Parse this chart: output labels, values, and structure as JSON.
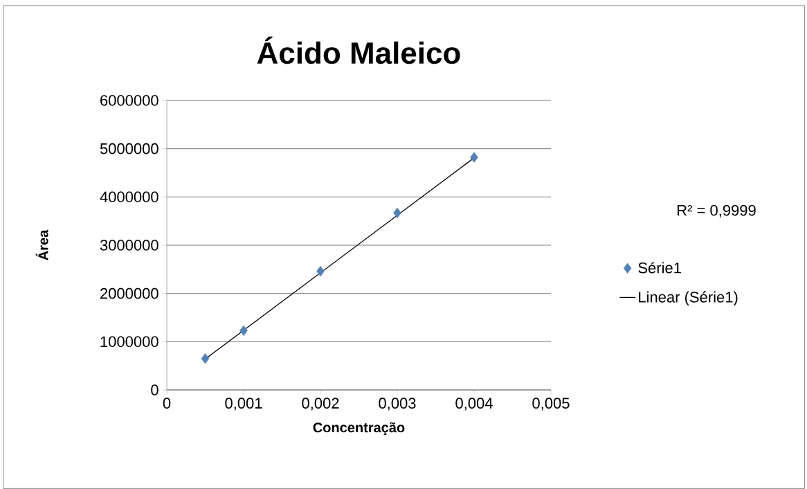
{
  "chart_data": {
    "type": "scatter",
    "title": "Ácido Maleico",
    "xlabel": "Concentração",
    "ylabel": "Área",
    "annotations": [
      "R² = 0,9999"
    ],
    "series": [
      {
        "name": "Série1",
        "marker": "diamond",
        "color": "#4f81bd",
        "x": [
          0.0005,
          0.001,
          0.002,
          0.003,
          0.004
        ],
        "values": [
          650000,
          1230000,
          2460000,
          3670000,
          4820000
        ]
      },
      {
        "name": "Linear (Série1)",
        "type": "line",
        "color": "#000000",
        "x": [
          0.0005,
          0.004
        ],
        "values": [
          640000,
          4810000
        ]
      }
    ],
    "xlim": [
      0,
      0.005
    ],
    "ylim": [
      0,
      6000000
    ],
    "xticks": [
      0,
      {
        "value": 0.001,
        "label": "0,001"
      },
      {
        "value": 0.002,
        "label": "0,002"
      },
      {
        "value": 0.003,
        "label": "0,003"
      },
      {
        "value": 0.004,
        "label": "0,004"
      },
      {
        "value": 0.005,
        "label": "0,005"
      }
    ],
    "yticks": [
      0,
      1000000,
      2000000,
      3000000,
      4000000,
      5000000,
      6000000
    ],
    "grid": "y",
    "legend": "right",
    "line_style": "solid"
  }
}
